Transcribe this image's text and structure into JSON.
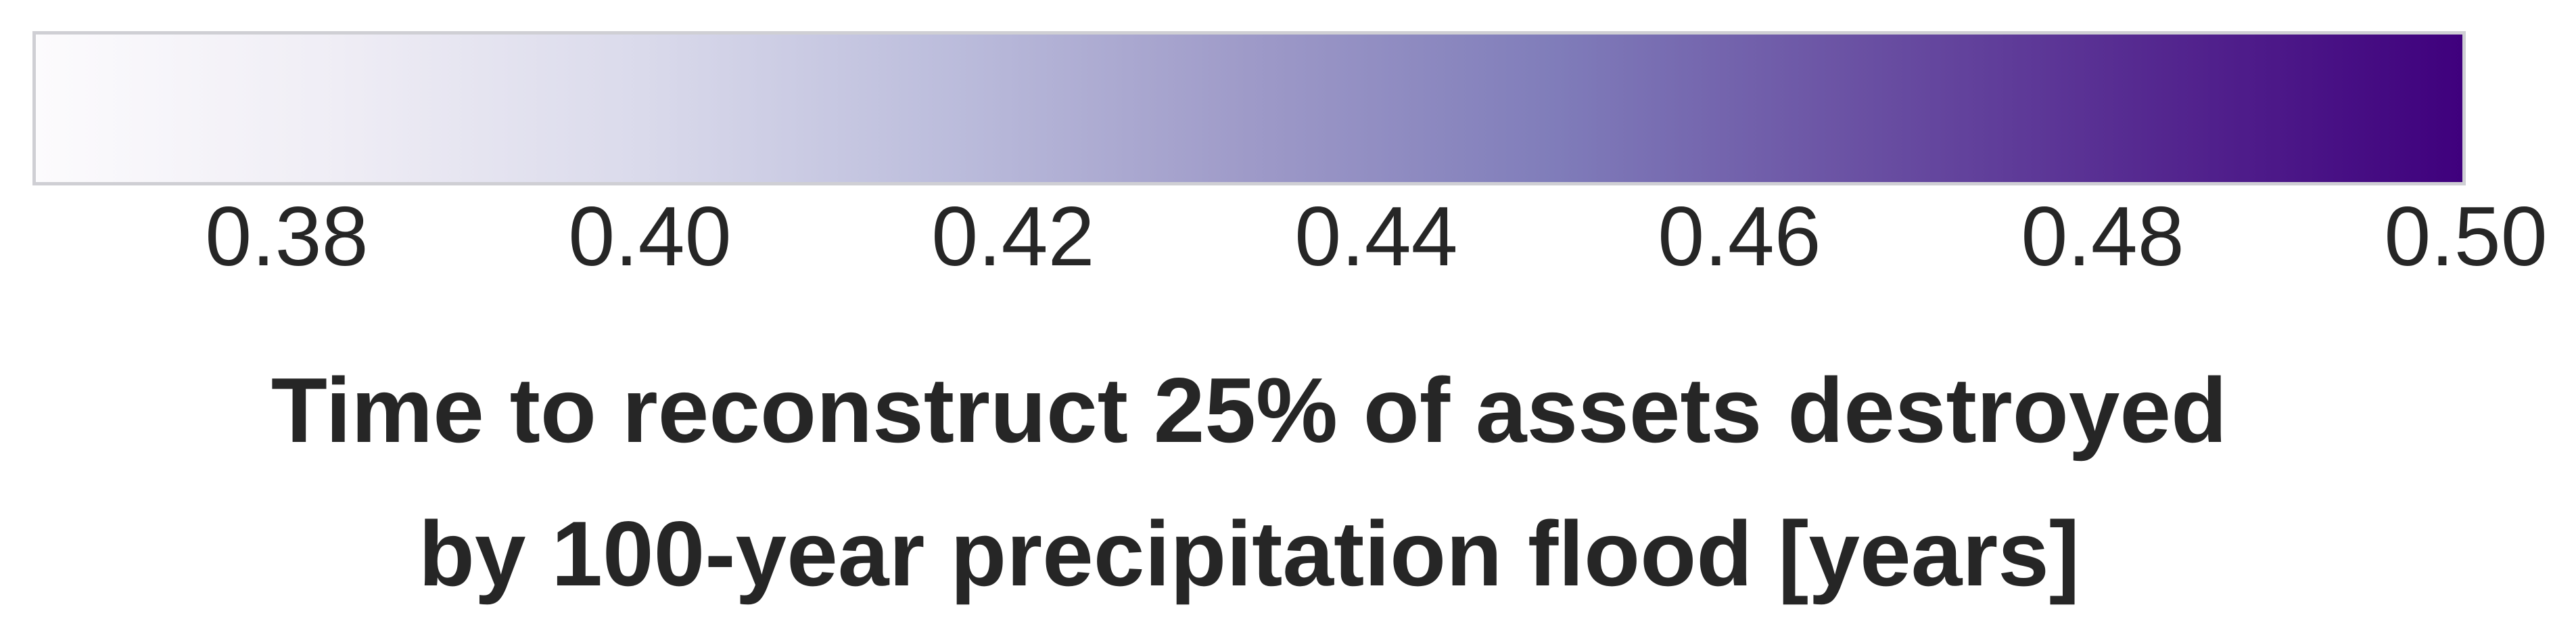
{
  "chart_data": {
    "type": "colorbar",
    "orientation": "horizontal",
    "colormap": "Purples",
    "range": [
      0.366,
      0.5
    ],
    "gradient_colors": [
      "#fcfbfd",
      "#efedf5",
      "#dadaeb",
      "#bcbddc",
      "#9e9ac8",
      "#807dba",
      "#6a51a3",
      "#54278f",
      "#3f007d"
    ],
    "ticks": [
      0.38,
      0.4,
      0.42,
      0.44,
      0.46,
      0.48,
      0.5
    ],
    "tick_labels": [
      "0.38",
      "0.40",
      "0.42",
      "0.44",
      "0.46",
      "0.48",
      "0.50"
    ],
    "xlabel_lines": [
      "Time to reconstruct 25% of assets destroyed",
      "by 100-year precipitation flood [years]"
    ],
    "border_color": "#cfcfd4",
    "text_color": "#262626"
  }
}
